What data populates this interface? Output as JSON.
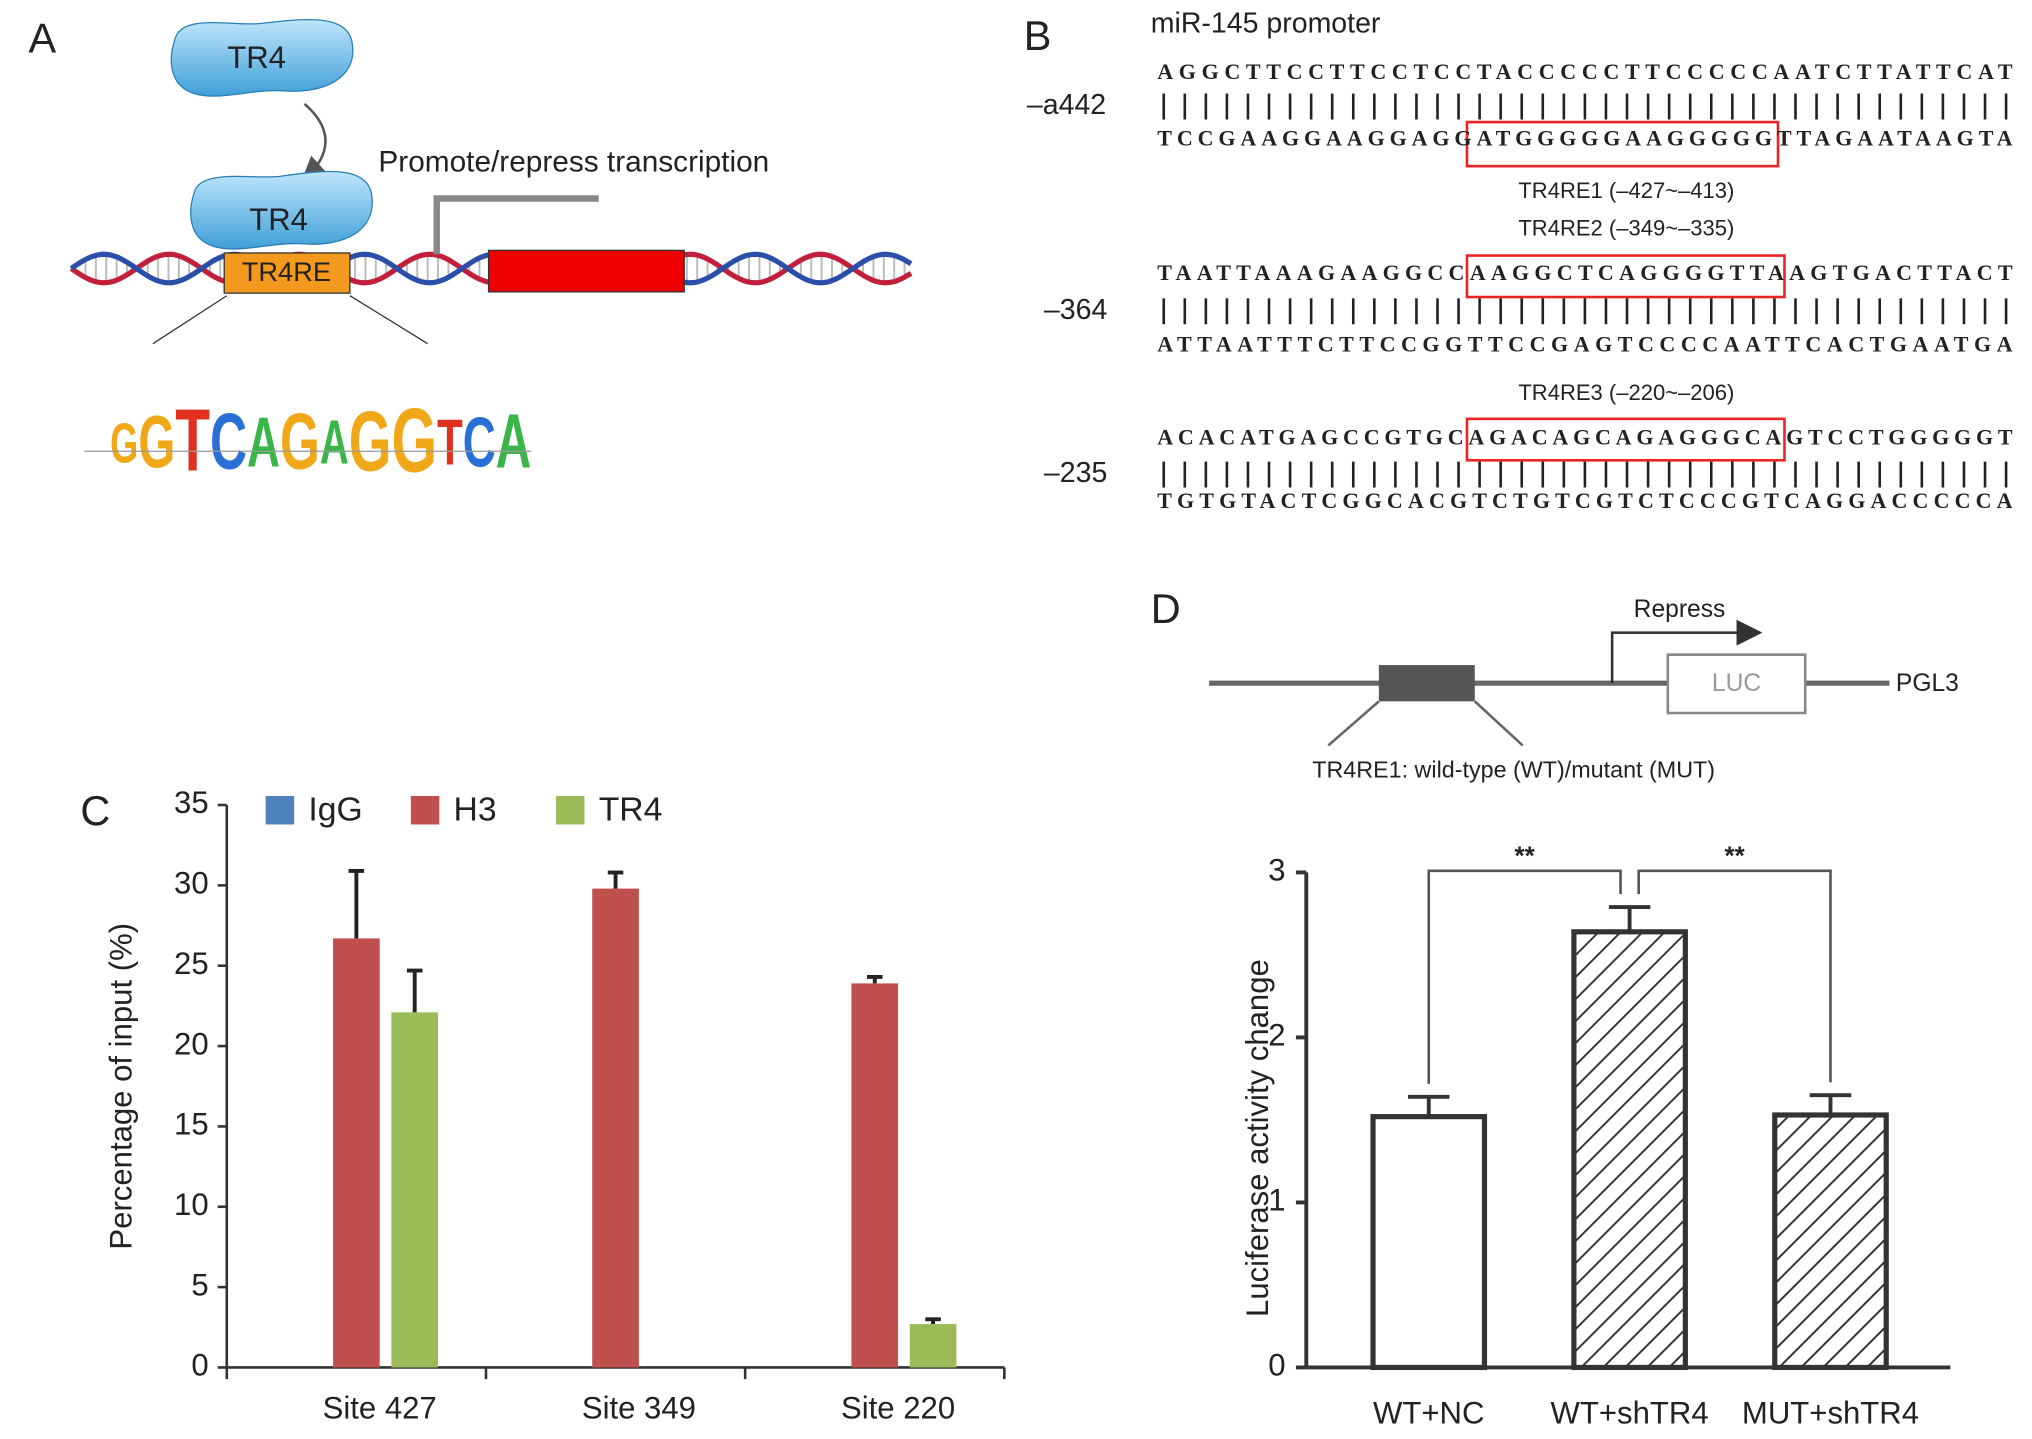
{
  "panel_labels": [
    "A",
    "B",
    "C",
    "D"
  ],
  "panel_a": {
    "proteins": [
      "TR4",
      "TR4"
    ],
    "element": "TR4RE",
    "annotation": "Promote/repress transcription",
    "motif": "GGTCAGAGGTCA"
  },
  "panel_b": {
    "title": "miR-145 promoter",
    "blocks": [
      {
        "position": "–a442",
        "top": "AGGCTTCCTTCCTCCTACCCCCTTCCCCCAATCTTATTCAT",
        "bottom": "TCCGAAGGAAGGAGGATGGGGGAAGGGGGTTAGAATAAGTA"
      },
      {
        "position": "–364",
        "top": "TAATTAAAGAAGGCCAAGGCTCAGGGGTTAAGTGACTTACT",
        "bottom": "ATTAATTTCTTCCGGTTCCGAGTCCCCAATTCACTGAATGA"
      },
      {
        "position": "–235",
        "top": "ACACATGAGCCGTGCAGACAGCAGAGGGCAGTCCTGGGGGT",
        "bottom": "TGTGTACTCGGCACGTCTGTCGTCTCCCGTCAGGACCCCCA"
      }
    ],
    "sites": [
      "TR4RE1 (–427~–413)",
      "TR4RE2 (–349~–335)",
      "TR4RE3 (–220~–206)"
    ]
  },
  "panel_d": {
    "label": "Repress",
    "reporter": "LUC",
    "vector": "PGL3",
    "element": "TR4RE1: wild-type (WT)/mutant (MUT)"
  },
  "chart_data": [
    {
      "type": "bar",
      "ylabel": "Percentage of input (%)",
      "categories": [
        "Site 427",
        "Site 349",
        "Site 220"
      ],
      "series": [
        {
          "name": "IgG",
          "color": "#4f81bd",
          "values": [
            0,
            0,
            0
          ],
          "errors": [
            null,
            null,
            null
          ]
        },
        {
          "name": "H3",
          "color": "#c0504d",
          "values": [
            26.7,
            29.8,
            23.9
          ],
          "errors": [
            4.2,
            1.0,
            0.4
          ]
        },
        {
          "name": "TR4",
          "color": "#9bbb59",
          "values": [
            22.1,
            0,
            2.7
          ],
          "errors": [
            2.6,
            null,
            0.3
          ]
        }
      ],
      "ylim": [
        0,
        35
      ],
      "yticks": [
        0,
        5,
        10,
        15,
        20,
        25,
        30,
        35
      ],
      "legend": "top"
    },
    {
      "type": "bar",
      "ylabel": "Luciferase activity change",
      "categories": [
        "WT+NC",
        "WT+shTR4",
        "MUT+shTR4"
      ],
      "values": [
        1.52,
        2.64,
        1.53
      ],
      "errors": [
        0.12,
        0.15,
        0.12
      ],
      "hatch": [
        false,
        true,
        true
      ],
      "color": "#333333",
      "significance": [
        "**",
        "**"
      ],
      "ylim": [
        0,
        3
      ],
      "yticks": [
        0,
        1,
        2,
        3
      ]
    }
  ]
}
